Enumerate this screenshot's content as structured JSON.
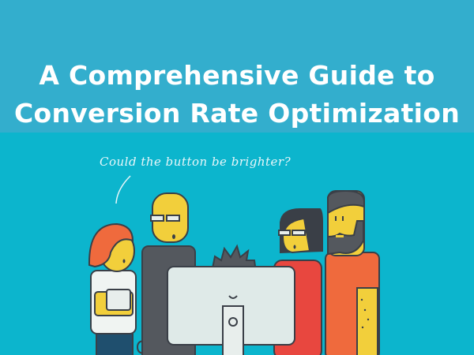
{
  "title": {
    "line1": "A Comprehensive Guide to",
    "line2": "Conversion Rate Optimization"
  },
  "illustration": {
    "speech_text": "Could the button be brighter?"
  },
  "colors": {
    "banner": "#33aecd",
    "background": "#0cb5cd",
    "skin": "#f2cf3b",
    "outline": "#3a3f47"
  }
}
